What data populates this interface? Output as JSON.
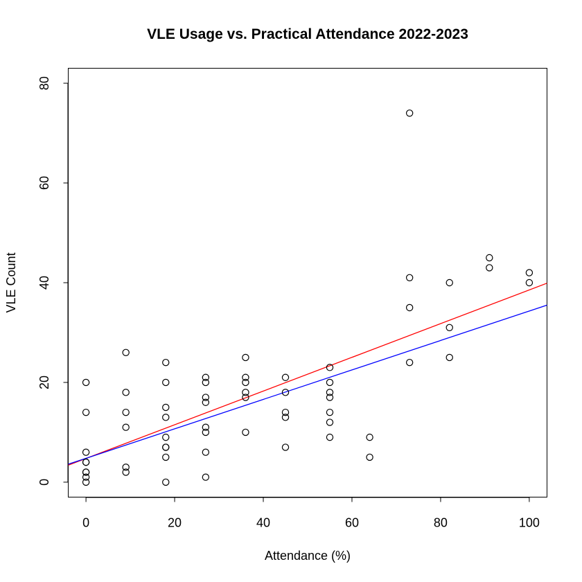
{
  "chart_data": {
    "type": "scatter",
    "title": "VLE Usage vs. Practical Attendance 2022-2023",
    "xlabel": "Attendance (%)",
    "ylabel": "VLE Count",
    "xlim": [
      -4,
      104
    ],
    "ylim": [
      -3,
      83
    ],
    "xticks": [
      0,
      20,
      40,
      60,
      80,
      100
    ],
    "yticks": [
      0,
      20,
      40,
      60,
      80
    ],
    "grid": false,
    "legend": "none",
    "points": [
      [
        0,
        20
      ],
      [
        0,
        14
      ],
      [
        0,
        6
      ],
      [
        0,
        4
      ],
      [
        0,
        4
      ],
      [
        0,
        2
      ],
      [
        0,
        2
      ],
      [
        0,
        1
      ],
      [
        0,
        0
      ],
      [
        9,
        26
      ],
      [
        9,
        18
      ],
      [
        9,
        14
      ],
      [
        9,
        11
      ],
      [
        9,
        3
      ],
      [
        9,
        2
      ],
      [
        18,
        24
      ],
      [
        18,
        20
      ],
      [
        18,
        15
      ],
      [
        18,
        13
      ],
      [
        18,
        9
      ],
      [
        18,
        7
      ],
      [
        18,
        7
      ],
      [
        18,
        5
      ],
      [
        18,
        0
      ],
      [
        27,
        21
      ],
      [
        27,
        20
      ],
      [
        27,
        17
      ],
      [
        27,
        16
      ],
      [
        27,
        11
      ],
      [
        27,
        10
      ],
      [
        27,
        6
      ],
      [
        27,
        1
      ],
      [
        36,
        25
      ],
      [
        36,
        21
      ],
      [
        36,
        20
      ],
      [
        36,
        18
      ],
      [
        36,
        17
      ],
      [
        36,
        10
      ],
      [
        45,
        21
      ],
      [
        45,
        18
      ],
      [
        45,
        14
      ],
      [
        45,
        13
      ],
      [
        45,
        7
      ],
      [
        55,
        23
      ],
      [
        55,
        20
      ],
      [
        55,
        18
      ],
      [
        55,
        17
      ],
      [
        55,
        14
      ],
      [
        55,
        12
      ],
      [
        55,
        9
      ],
      [
        64,
        9
      ],
      [
        64,
        5
      ],
      [
        73,
        74
      ],
      [
        73,
        41
      ],
      [
        73,
        35
      ],
      [
        73,
        24
      ],
      [
        82,
        40
      ],
      [
        82,
        31
      ],
      [
        82,
        25
      ],
      [
        91,
        45
      ],
      [
        91,
        43
      ],
      [
        100,
        42
      ],
      [
        100,
        40
      ]
    ],
    "fit_lines": [
      {
        "color": "#ff0000",
        "x": [
          -4,
          104
        ],
        "y": [
          3.4,
          39.9
        ]
      },
      {
        "color": "#0000ff",
        "x": [
          -4,
          104
        ],
        "y": [
          3.6,
          35.5
        ]
      }
    ]
  }
}
